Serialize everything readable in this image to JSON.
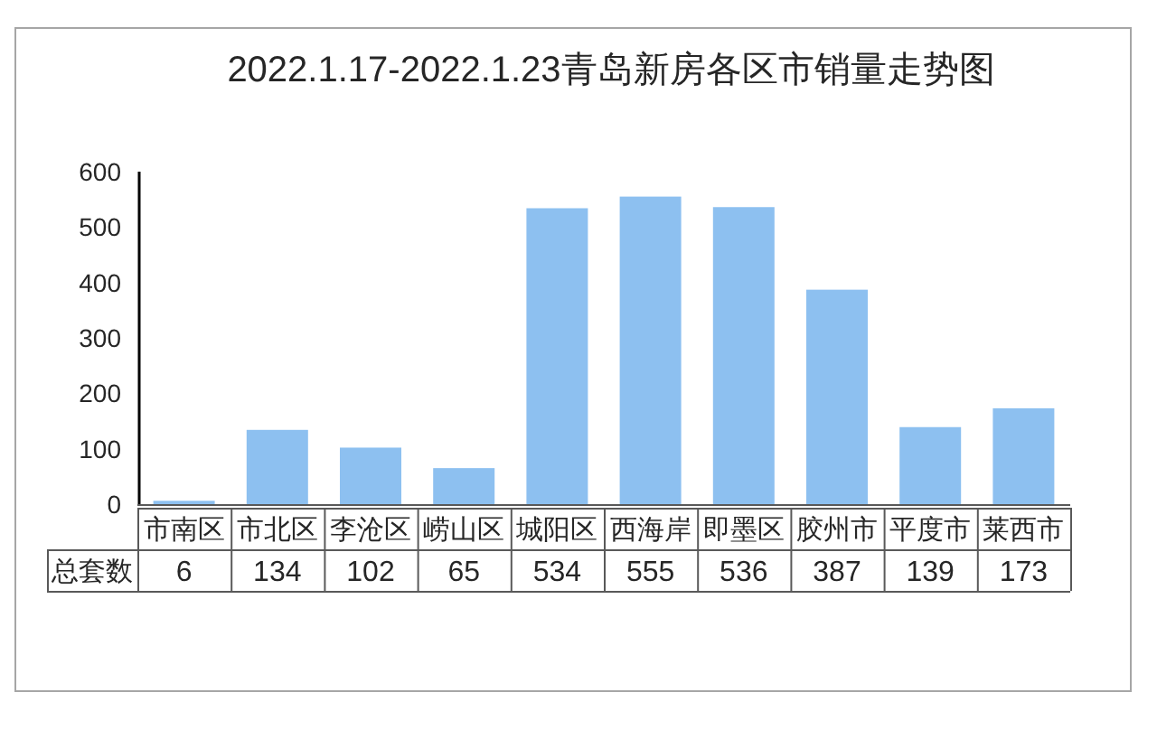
{
  "chart_data": {
    "type": "bar",
    "title": "2022.1.17-2022.1.23青岛新房各区市销量走势图",
    "categories": [
      "市南区",
      "市北区",
      "李沧区",
      "崂山区",
      "城阳区",
      "西海岸",
      "即墨区",
      "胶州市",
      "平度市",
      "莱西市"
    ],
    "series": [
      {
        "name": "总套数",
        "color": "#8dc0f0",
        "values": [
          6,
          134,
          102,
          65,
          534,
          555,
          536,
          387,
          139,
          173
        ]
      }
    ],
    "ylim": [
      0,
      600
    ],
    "yticks": [
      0,
      100,
      200,
      300,
      400,
      500,
      600
    ],
    "data_labels": true
  }
}
